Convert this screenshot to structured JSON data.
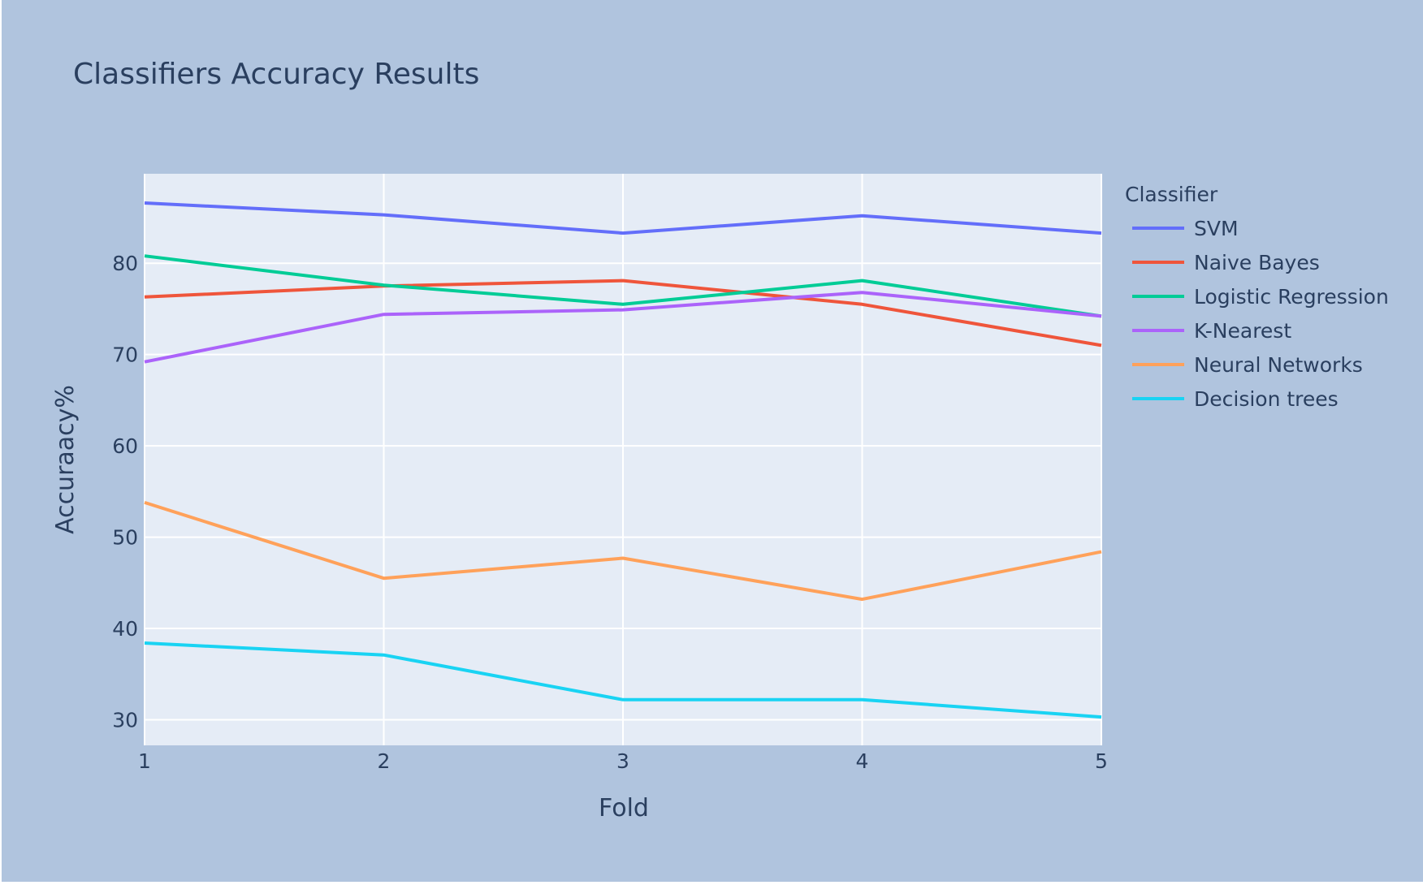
{
  "chart_data": {
    "type": "line",
    "title": "Classifiers Accuracy Results",
    "xlabel": "Fold",
    "ylabel": "Accuraacy%",
    "x": [
      1,
      2,
      3,
      4,
      5
    ],
    "x_ticks": [
      "1",
      "2",
      "3",
      "4",
      "5"
    ],
    "y_ticks": [
      "30",
      "40",
      "50",
      "60",
      "70",
      "80"
    ],
    "xlim": [
      1,
      5
    ],
    "ylim": [
      27.2,
      89.8
    ],
    "grid": true,
    "legend": {
      "title": "Classifier",
      "position": "top-right outside"
    },
    "background": {
      "paper": "#b0c4de",
      "plot": "#e5ecf6"
    },
    "series": [
      {
        "name": "SVM",
        "color": "#636efa",
        "values": [
          86.6,
          85.3,
          83.3,
          85.2,
          83.3
        ]
      },
      {
        "name": "Naive Bayes",
        "color": "#ef553b",
        "values": [
          76.3,
          77.5,
          78.1,
          75.5,
          71.0
        ]
      },
      {
        "name": "Logistic Regression",
        "color": "#00cc96",
        "values": [
          80.8,
          77.6,
          75.5,
          78.1,
          74.2
        ]
      },
      {
        "name": "K-Nearest",
        "color": "#ab63fa",
        "values": [
          69.2,
          74.4,
          74.9,
          76.8,
          74.2
        ]
      },
      {
        "name": "Neural Networks",
        "color": "#ffa15a",
        "values": [
          53.8,
          45.5,
          47.7,
          43.2,
          48.4
        ]
      },
      {
        "name": "Decision trees",
        "color": "#19d3f3",
        "values": [
          38.4,
          37.1,
          32.2,
          32.2,
          30.3
        ]
      }
    ]
  }
}
